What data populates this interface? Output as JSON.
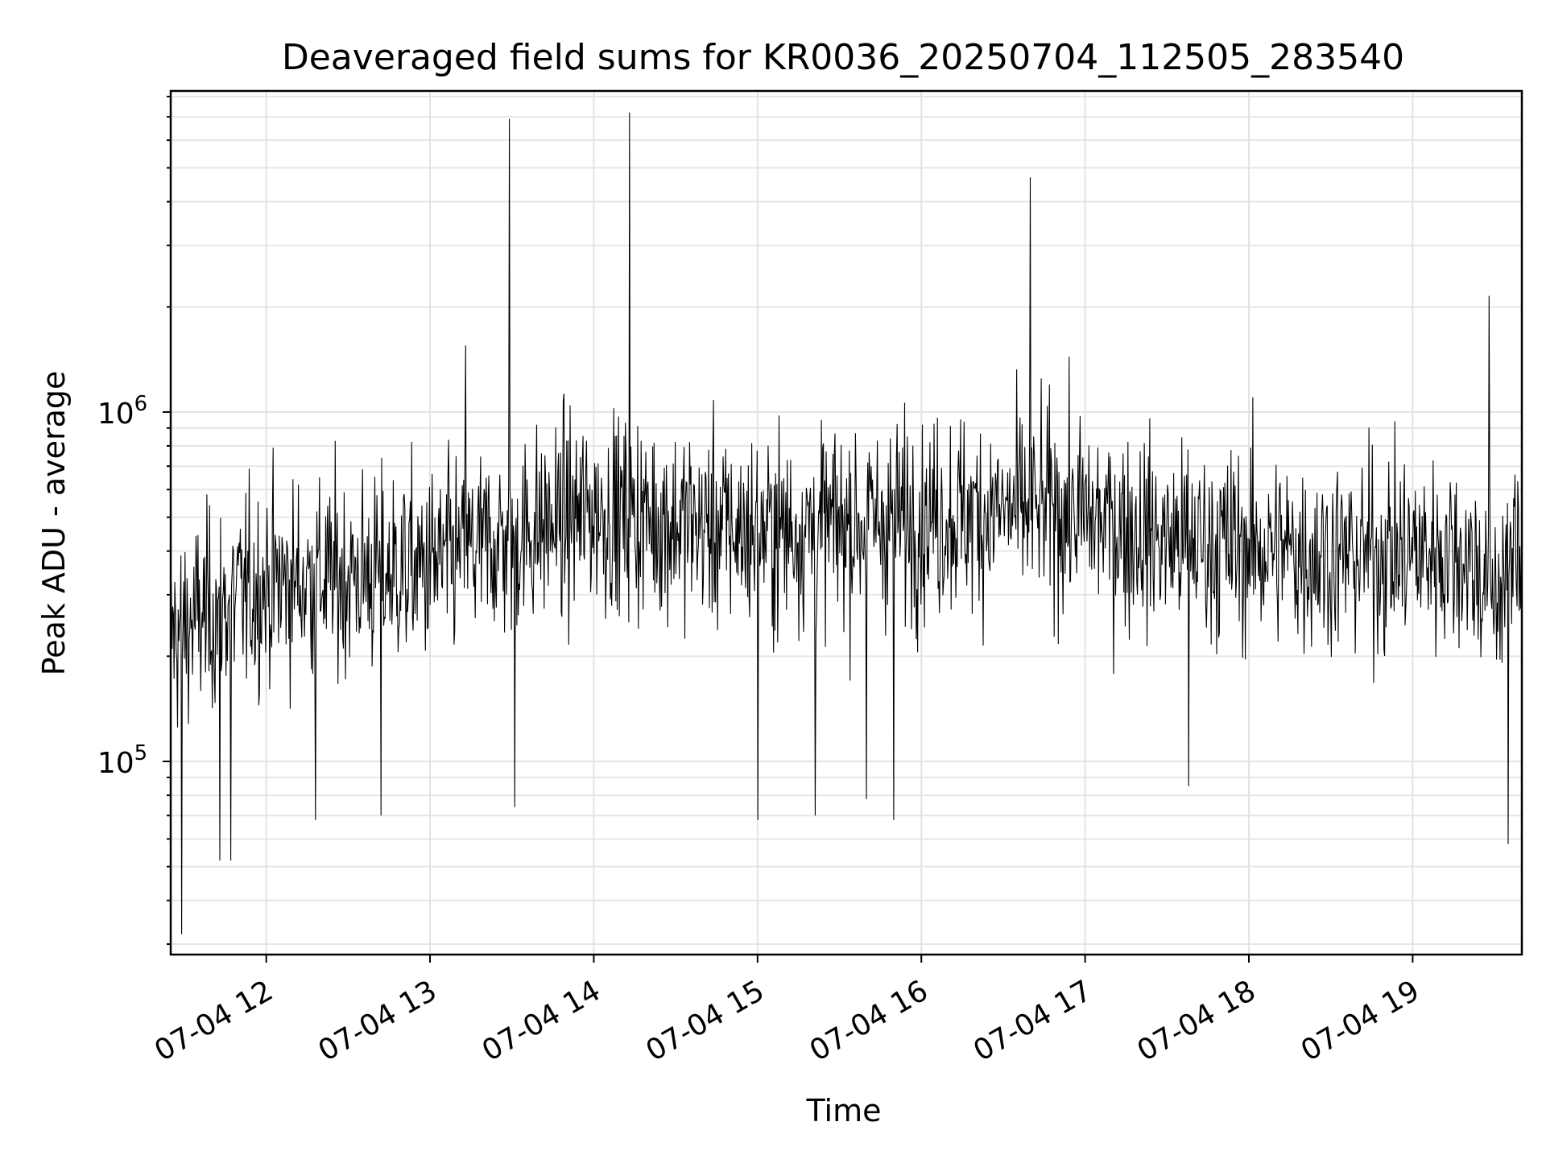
{
  "chart_data": {
    "type": "line",
    "title": "Deaveraged field sums for KR0036_20250704_112505_283540",
    "xlabel": "Time",
    "ylabel": "Peak ADU - average",
    "yscale": "log",
    "ylim": [
      28000,
      8300000
    ],
    "xlim": [
      "07-04 11:25",
      "07-04 19:40"
    ],
    "grid": true,
    "legend": "none",
    "line_color": "#000000",
    "x_tick_labels": [
      "07-04 12",
      "07-04 13",
      "07-04 14",
      "07-04 15",
      "07-04 16",
      "07-04 17",
      "07-04 18",
      "07-04 19"
    ],
    "y_tick_labels": [
      {
        "base": "10",
        "exp": "5",
        "value": 100000
      },
      {
        "base": "10",
        "exp": "6",
        "value": 1000000
      }
    ],
    "series": [
      {
        "values_summary": "dense time series (~2000 samples, ~15 s cadence) of peak ADU minus average; baseline ~2.5e5 near 11:30 rising to ~5e5 at 14:00-17:00 and ~4e5 after",
        "spikes": [
          {
            "x": "07-04 11:29",
            "y": 32000
          },
          {
            "x": "07-04 11:43",
            "y": 52000
          },
          {
            "x": "07-04 11:47",
            "y": 52000
          },
          {
            "x": "07-04 12:18",
            "y": 68000
          },
          {
            "x": "07-04 12:42",
            "y": 70000
          },
          {
            "x": "07-04 13:13",
            "y": 1550000
          },
          {
            "x": "07-04 13:29",
            "y": 6900000
          },
          {
            "x": "07-04 13:31",
            "y": 74000
          },
          {
            "x": "07-04 14:13",
            "y": 7200000
          },
          {
            "x": "07-04 15:00",
            "y": 68000
          },
          {
            "x": "07-04 15:21",
            "y": 70000
          },
          {
            "x": "07-04 15:40",
            "y": 78000
          },
          {
            "x": "07-04 15:50",
            "y": 68000
          },
          {
            "x": "07-04 16:40",
            "y": 4700000
          },
          {
            "x": "07-04 17:38",
            "y": 85000
          },
          {
            "x": "07-04 19:28",
            "y": 2150000
          },
          {
            "x": "07-04 19:35",
            "y": 58000
          }
        ]
      }
    ]
  }
}
